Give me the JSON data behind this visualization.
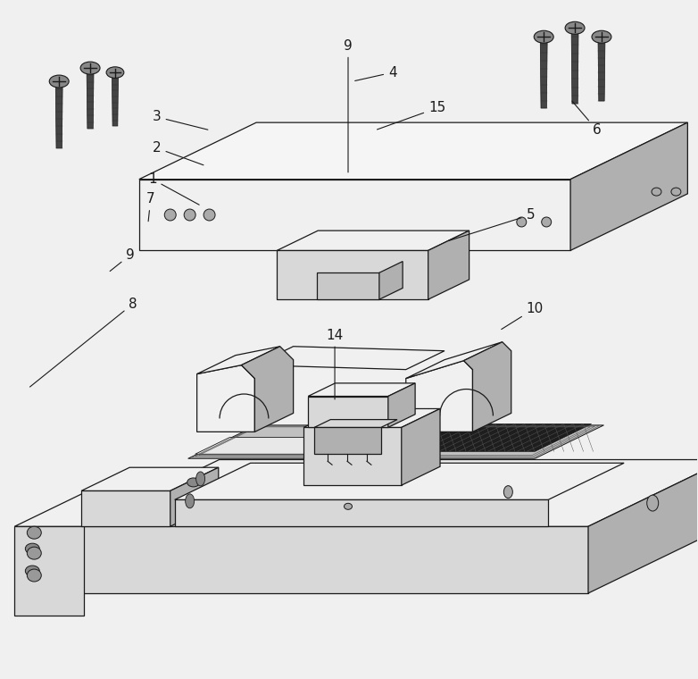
{
  "bg": "#f0f0f0",
  "lc": "#1a1a1a",
  "face_light": "#f0f0f0",
  "face_mid": "#d8d8d8",
  "face_dark": "#b0b0b0",
  "face_vdark": "#808080",
  "screw_dark": "#222222",
  "screw_body": "#555555",
  "pcb_dark": "#1a1a1a",
  "pcb_light": "#e8e8e8",
  "lw": 0.9
}
